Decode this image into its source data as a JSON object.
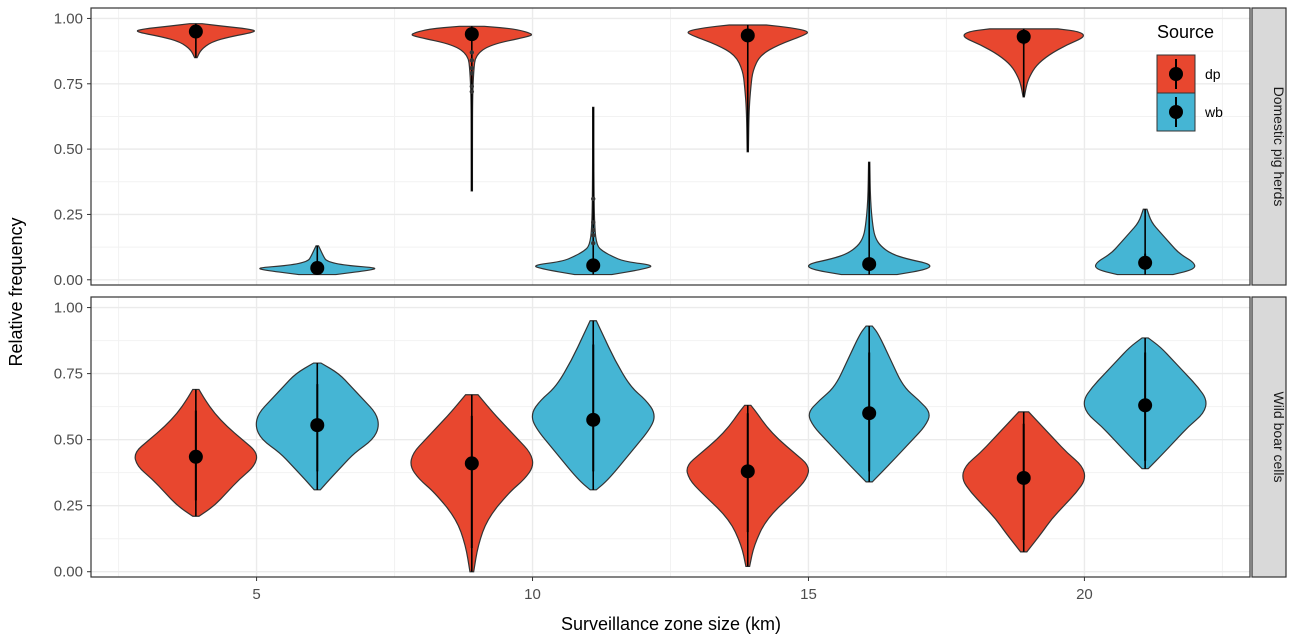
{
  "chart_data": {
    "type": "violin",
    "xlabel": "Surveillance zone size (km)",
    "ylabel": "Relative frequency",
    "xlim": [
      2.0,
      23.0
    ],
    "ylim": [
      -0.02,
      1.04
    ],
    "x_ticks": [
      5,
      10,
      15,
      20
    ],
    "x_tick_labels": [
      "5",
      "10",
      "15",
      "20"
    ],
    "y_ticks": [
      0.0,
      0.25,
      0.5,
      0.75,
      1.0
    ],
    "y_tick_labels": [
      "0.00",
      "0.25",
      "0.50",
      "0.75",
      "1.00"
    ],
    "grid": true,
    "legend": {
      "title": "Source",
      "placement": "top-right",
      "items": [
        {
          "key": "dp",
          "label": "dp",
          "color": "#e8472f"
        },
        {
          "key": "wb",
          "label": "wb",
          "color": "#45b5d4"
        }
      ]
    },
    "panels": [
      {
        "label": "Domestic pig herds",
        "violins": [
          {
            "source": "dp",
            "x": 3.9,
            "median": 0.95,
            "min": 0.85,
            "max": 0.98,
            "lower": 0.93,
            "upper": 0.97,
            "profile": [
              [
                0.85,
                0.02
              ],
              [
                0.88,
                0.08
              ],
              [
                0.91,
                0.25
              ],
              [
                0.93,
                0.55
              ],
              [
                0.95,
                1.0
              ],
              [
                0.96,
                0.85
              ],
              [
                0.97,
                0.45
              ],
              [
                0.98,
                0.1
              ]
            ],
            "outliers": []
          },
          {
            "source": "wb",
            "x": 6.1,
            "median": 0.045,
            "min": 0.02,
            "max": 0.13,
            "lower": 0.04,
            "upper": 0.05,
            "profile": [
              [
                0.02,
                0.3
              ],
              [
                0.035,
                0.8
              ],
              [
                0.045,
                1.0
              ],
              [
                0.055,
                0.45
              ],
              [
                0.07,
                0.15
              ],
              [
                0.09,
                0.1
              ],
              [
                0.11,
                0.06
              ],
              [
                0.13,
                0.02
              ]
            ],
            "outliers": []
          },
          {
            "source": "dp",
            "x": 8.9,
            "median": 0.94,
            "min": 0.34,
            "max": 0.97,
            "lower": 0.92,
            "upper": 0.96,
            "profile": [
              [
                0.34,
                0.01
              ],
              [
                0.5,
                0.01
              ],
              [
                0.7,
                0.012
              ],
              [
                0.8,
                0.03
              ],
              [
                0.86,
                0.06
              ],
              [
                0.9,
                0.3
              ],
              [
                0.93,
                0.9
              ],
              [
                0.94,
                1.0
              ],
              [
                0.96,
                0.7
              ],
              [
                0.97,
                0.2
              ]
            ],
            "outliers": [
              0.72,
              0.74,
              0.79,
              0.81,
              0.84,
              0.87
            ]
          },
          {
            "source": "wb",
            "x": 11.1,
            "median": 0.055,
            "min": 0.02,
            "max": 0.66,
            "lower": 0.04,
            "upper": 0.07,
            "profile": [
              [
                0.02,
                0.3
              ],
              [
                0.04,
                0.8
              ],
              [
                0.055,
                1.0
              ],
              [
                0.07,
                0.5
              ],
              [
                0.09,
                0.3
              ],
              [
                0.11,
                0.15
              ],
              [
                0.13,
                0.06
              ],
              [
                0.2,
                0.02
              ],
              [
                0.4,
                0.01
              ],
              [
                0.66,
                0.01
              ]
            ],
            "outliers": [
              0.14,
              0.17,
              0.19,
              0.22,
              0.31
            ]
          },
          {
            "source": "dp",
            "x": 13.9,
            "median": 0.935,
            "min": 0.49,
            "max": 0.975,
            "lower": 0.91,
            "upper": 0.96,
            "profile": [
              [
                0.49,
                0.01
              ],
              [
                0.65,
                0.02
              ],
              [
                0.74,
                0.05
              ],
              [
                0.8,
                0.08
              ],
              [
                0.86,
                0.2
              ],
              [
                0.9,
                0.5
              ],
              [
                0.935,
                0.9
              ],
              [
                0.95,
                1.0
              ],
              [
                0.965,
                0.7
              ],
              [
                0.975,
                0.3
              ]
            ],
            "outliers": []
          },
          {
            "source": "wb",
            "x": 16.1,
            "median": 0.06,
            "min": 0.02,
            "max": 0.45,
            "lower": 0.04,
            "upper": 0.08,
            "profile": [
              [
                0.02,
                0.45
              ],
              [
                0.04,
                0.95
              ],
              [
                0.06,
                1.0
              ],
              [
                0.08,
                0.6
              ],
              [
                0.1,
                0.35
              ],
              [
                0.13,
                0.18
              ],
              [
                0.16,
                0.1
              ],
              [
                0.2,
                0.06
              ],
              [
                0.3,
                0.02
              ],
              [
                0.45,
                0.01
              ]
            ],
            "outliers": []
          },
          {
            "source": "dp",
            "x": 18.9,
            "median": 0.93,
            "min": 0.7,
            "max": 0.96,
            "lower": 0.9,
            "upper": 0.955,
            "profile": [
              [
                0.7,
                0.01
              ],
              [
                0.75,
                0.05
              ],
              [
                0.78,
                0.1
              ],
              [
                0.82,
                0.2
              ],
              [
                0.86,
                0.4
              ],
              [
                0.9,
                0.7
              ],
              [
                0.93,
                1.0
              ],
              [
                0.95,
                0.9
              ],
              [
                0.96,
                0.55
              ]
            ],
            "outliers": []
          },
          {
            "source": "wb",
            "x": 21.1,
            "median": 0.065,
            "min": 0.02,
            "max": 0.27,
            "lower": 0.04,
            "upper": 0.1,
            "profile": [
              [
                0.02,
                0.45
              ],
              [
                0.04,
                0.8
              ],
              [
                0.065,
                0.8
              ],
              [
                0.1,
                0.55
              ],
              [
                0.14,
                0.4
              ],
              [
                0.18,
                0.25
              ],
              [
                0.22,
                0.1
              ],
              [
                0.27,
                0.03
              ]
            ],
            "outliers": []
          }
        ]
      },
      {
        "label": "Wild boar cells",
        "violins": [
          {
            "source": "dp",
            "x": 3.9,
            "median": 0.435,
            "min": 0.21,
            "max": 0.69,
            "lower": 0.27,
            "upper": 0.61,
            "profile": [
              [
                0.21,
                0.05
              ],
              [
                0.25,
                0.3
              ],
              [
                0.3,
                0.5
              ],
              [
                0.35,
                0.7
              ],
              [
                0.4,
                0.95
              ],
              [
                0.45,
                1.0
              ],
              [
                0.5,
                0.75
              ],
              [
                0.55,
                0.5
              ],
              [
                0.6,
                0.3
              ],
              [
                0.65,
                0.15
              ],
              [
                0.69,
                0.05
              ]
            ],
            "outliers": []
          },
          {
            "source": "wb",
            "x": 6.1,
            "median": 0.555,
            "min": 0.31,
            "max": 0.79,
            "lower": 0.38,
            "upper": 0.71,
            "profile": [
              [
                0.31,
                0.05
              ],
              [
                0.35,
                0.2
              ],
              [
                0.4,
                0.4
              ],
              [
                0.45,
                0.6
              ],
              [
                0.5,
                0.9
              ],
              [
                0.55,
                1.0
              ],
              [
                0.6,
                0.95
              ],
              [
                0.65,
                0.75
              ],
              [
                0.7,
                0.55
              ],
              [
                0.75,
                0.35
              ],
              [
                0.79,
                0.06
              ]
            ],
            "outliers": []
          },
          {
            "source": "dp",
            "x": 8.9,
            "median": 0.41,
            "min": 0.0,
            "max": 0.67,
            "lower": 0.09,
            "upper": 0.59,
            "profile": [
              [
                0.0,
                0.03
              ],
              [
                0.1,
                0.1
              ],
              [
                0.2,
                0.25
              ],
              [
                0.3,
                0.6
              ],
              [
                0.35,
                0.85
              ],
              [
                0.4,
                1.0
              ],
              [
                0.45,
                0.95
              ],
              [
                0.5,
                0.75
              ],
              [
                0.55,
                0.55
              ],
              [
                0.6,
                0.35
              ],
              [
                0.67,
                0.1
              ]
            ],
            "outliers": []
          },
          {
            "source": "wb",
            "x": 11.1,
            "median": 0.575,
            "min": 0.31,
            "max": 0.95,
            "lower": 0.38,
            "upper": 0.86,
            "profile": [
              [
                0.31,
                0.05
              ],
              [
                0.35,
                0.25
              ],
              [
                0.45,
                0.6
              ],
              [
                0.55,
                0.95
              ],
              [
                0.6,
                1.0
              ],
              [
                0.65,
                0.85
              ],
              [
                0.7,
                0.6
              ],
              [
                0.8,
                0.35
              ],
              [
                0.9,
                0.15
              ],
              [
                0.95,
                0.05
              ]
            ],
            "outliers": []
          },
          {
            "source": "dp",
            "x": 13.9,
            "median": 0.38,
            "min": 0.02,
            "max": 0.63,
            "lower": 0.15,
            "upper": 0.6,
            "profile": [
              [
                0.02,
                0.03
              ],
              [
                0.1,
                0.1
              ],
              [
                0.2,
                0.3
              ],
              [
                0.3,
                0.75
              ],
              [
                0.35,
                0.95
              ],
              [
                0.4,
                1.0
              ],
              [
                0.45,
                0.75
              ],
              [
                0.5,
                0.5
              ],
              [
                0.55,
                0.3
              ],
              [
                0.6,
                0.15
              ],
              [
                0.63,
                0.05
              ]
            ],
            "outliers": []
          },
          {
            "source": "wb",
            "x": 16.1,
            "median": 0.6,
            "min": 0.34,
            "max": 0.93,
            "lower": 0.38,
            "upper": 0.83,
            "profile": [
              [
                0.34,
                0.05
              ],
              [
                0.4,
                0.3
              ],
              [
                0.5,
                0.7
              ],
              [
                0.55,
                0.9
              ],
              [
                0.6,
                1.0
              ],
              [
                0.65,
                0.8
              ],
              [
                0.7,
                0.55
              ],
              [
                0.8,
                0.35
              ],
              [
                0.9,
                0.15
              ],
              [
                0.93,
                0.05
              ]
            ],
            "outliers": []
          },
          {
            "source": "dp",
            "x": 18.9,
            "median": 0.355,
            "min": 0.075,
            "max": 0.605,
            "lower": 0.12,
            "upper": 0.56,
            "profile": [
              [
                0.075,
                0.05
              ],
              [
                0.15,
                0.3
              ],
              [
                0.2,
                0.45
              ],
              [
                0.25,
                0.65
              ],
              [
                0.3,
                0.85
              ],
              [
                0.35,
                1.0
              ],
              [
                0.4,
                0.95
              ],
              [
                0.45,
                0.7
              ],
              [
                0.5,
                0.5
              ],
              [
                0.55,
                0.3
              ],
              [
                0.605,
                0.08
              ]
            ],
            "outliers": []
          },
          {
            "source": "wb",
            "x": 21.1,
            "median": 0.63,
            "min": 0.39,
            "max": 0.885,
            "lower": 0.42,
            "upper": 0.83,
            "profile": [
              [
                0.39,
                0.05
              ],
              [
                0.45,
                0.3
              ],
              [
                0.5,
                0.5
              ],
              [
                0.55,
                0.7
              ],
              [
                0.6,
                0.95
              ],
              [
                0.65,
                1.0
              ],
              [
                0.7,
                0.85
              ],
              [
                0.75,
                0.65
              ],
              [
                0.8,
                0.45
              ],
              [
                0.85,
                0.25
              ],
              [
                0.885,
                0.05
              ]
            ],
            "outliers": []
          }
        ]
      }
    ]
  }
}
